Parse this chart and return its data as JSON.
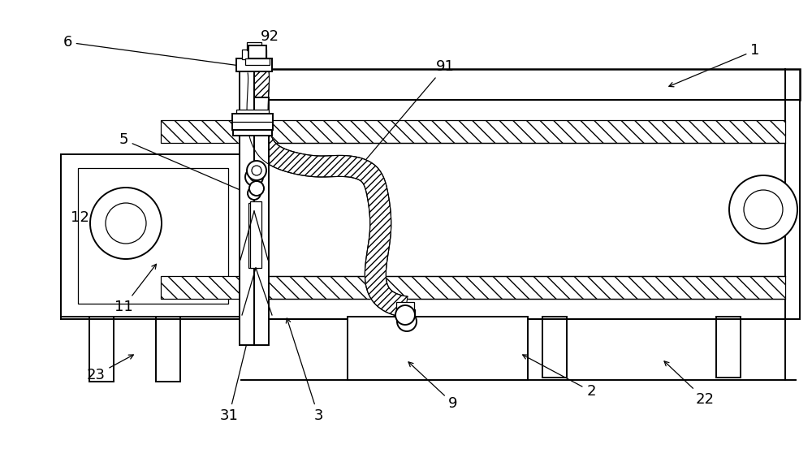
{
  "bg_color": "#ffffff",
  "lc": "#000000",
  "figsize": [
    10.0,
    5.53
  ],
  "dpi": 100,
  "labels_data": [
    [
      "1",
      930,
      62,
      820,
      108
    ],
    [
      "2",
      728,
      482,
      640,
      435
    ],
    [
      "3",
      392,
      512,
      352,
      388
    ],
    [
      "5",
      152,
      172,
      305,
      238
    ],
    [
      "6",
      83,
      52,
      303,
      82
    ],
    [
      "9",
      558,
      497,
      500,
      443
    ],
    [
      "11",
      152,
      378,
      195,
      322
    ],
    [
      "12",
      98,
      268,
      140,
      278
    ],
    [
      "22",
      868,
      492,
      815,
      442
    ],
    [
      "23",
      118,
      462,
      168,
      435
    ],
    [
      "31",
      282,
      512,
      312,
      390
    ],
    [
      "91",
      548,
      82,
      435,
      215
    ],
    [
      "92",
      332,
      45,
      313,
      78
    ]
  ],
  "label_fontsize": 13
}
